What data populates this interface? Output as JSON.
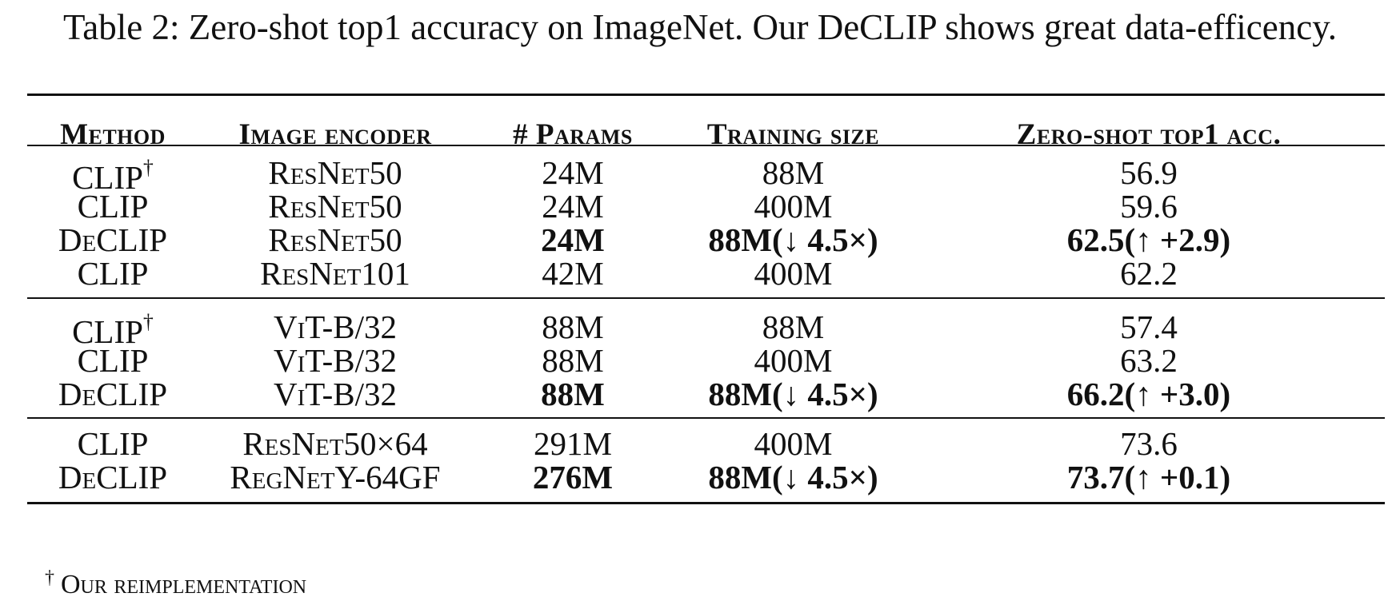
{
  "caption": "Table 2: Zero-shot top1 accuracy on ImageNet. Our DeCLIP shows great data-efficency.",
  "table": {
    "headers": {
      "method": "Method",
      "encoder": "Image encoder",
      "params": "# Params",
      "training": "Training size",
      "accuracy": "Zero-shot top1 acc."
    },
    "groups": [
      {
        "rows": [
          {
            "method": "CLIP",
            "dagger": "†",
            "encoder": "ResNet50",
            "params": "24M",
            "training": "88M",
            "accuracy": "56.9",
            "bold": false
          },
          {
            "method": "CLIP",
            "dagger": "",
            "encoder": "ResNet50",
            "params": "24M",
            "training": "400M",
            "accuracy": "59.6",
            "bold": false
          },
          {
            "method": "DeCLIP",
            "dagger": "",
            "encoder": "ResNet50",
            "params": "24M",
            "training": "88M(↓ 4.5×)",
            "accuracy": "62.5(↑ +2.9)",
            "bold": true
          },
          {
            "method": "CLIP",
            "dagger": "",
            "encoder": "ResNet101",
            "params": "42M",
            "training": "400M",
            "accuracy": "62.2",
            "bold": false
          }
        ]
      },
      {
        "rows": [
          {
            "method": "CLIP",
            "dagger": "†",
            "encoder": "ViT-B/32",
            "params": "88M",
            "training": "88M",
            "accuracy": "57.4",
            "bold": false
          },
          {
            "method": "CLIP",
            "dagger": "",
            "encoder": "ViT-B/32",
            "params": "88M",
            "training": "400M",
            "accuracy": "63.2",
            "bold": false
          },
          {
            "method": "DeCLIP",
            "dagger": "",
            "encoder": "ViT-B/32",
            "params": "88M",
            "training": "88M(↓ 4.5×)",
            "accuracy": "66.2(↑ +3.0)",
            "bold": true
          }
        ]
      },
      {
        "rows": [
          {
            "method": "CLIP",
            "dagger": "",
            "encoder": "ResNet50×64",
            "params": "291M",
            "training": "400M",
            "accuracy": "73.6",
            "bold": false
          },
          {
            "method": "DeCLIP",
            "dagger": "",
            "encoder": "RegNetY-64GF",
            "params": "276M",
            "training": "88M(↓ 4.5×)",
            "accuracy": "73.7(↑ +0.1)",
            "bold": true
          }
        ]
      }
    ]
  },
  "footnote": {
    "mark": "†",
    "text": "Our reimplementation"
  }
}
